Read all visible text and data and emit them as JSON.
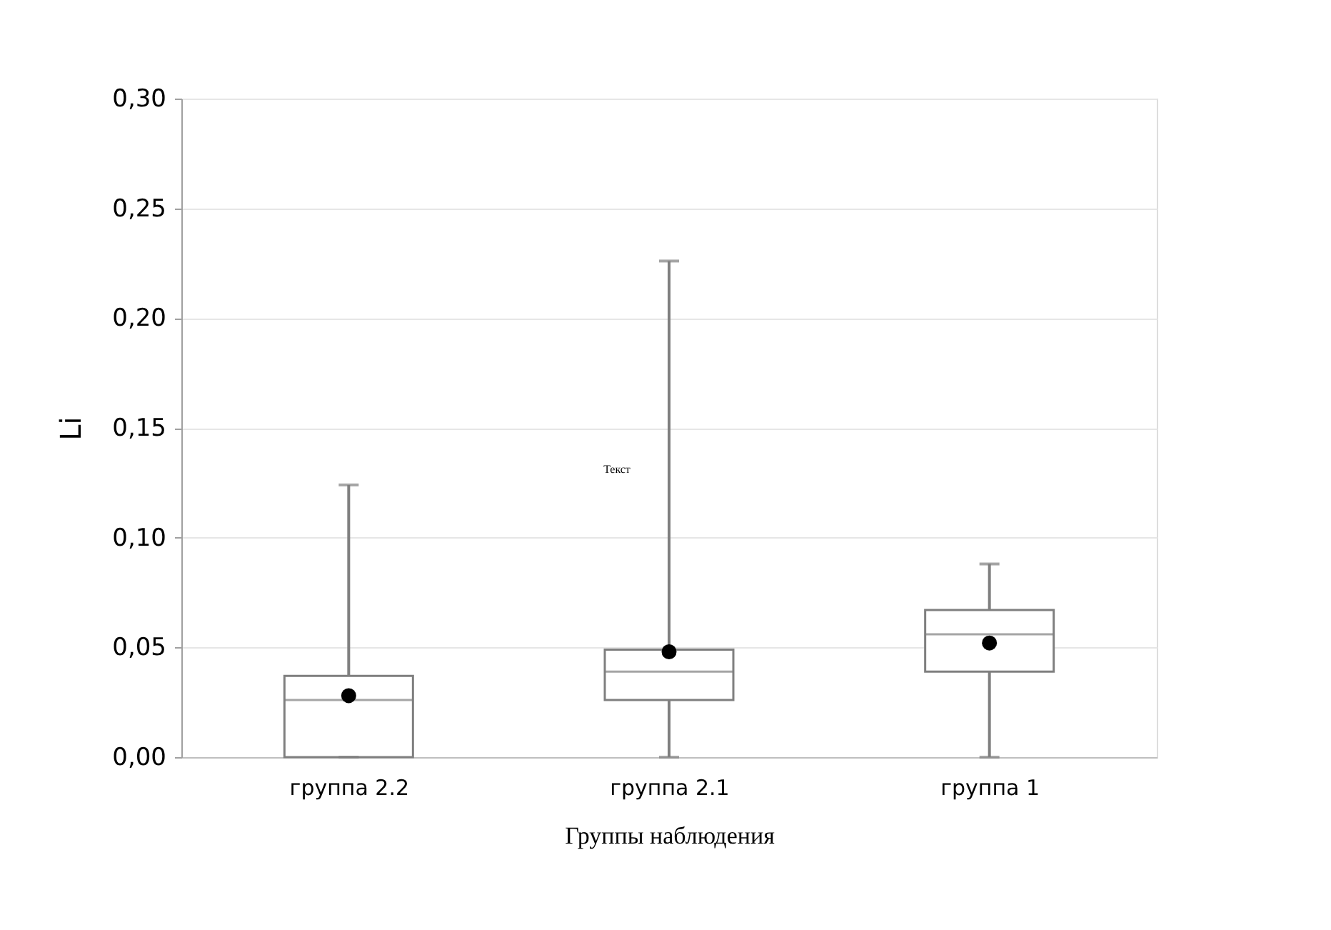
{
  "chart_data": {
    "type": "box",
    "categories": [
      "группа 2.2",
      "группа 2.1",
      "группа 1"
    ],
    "series": [
      {
        "color": "#7f7f7f",
        "boxes": [
          {
            "low": 0,
            "q1": 0,
            "median": 0.026,
            "q3": 0.037,
            "high": 0.124,
            "mean": 0.028
          },
          {
            "low": 0,
            "q1": 0.026,
            "median": 0.039,
            "q3": 0.049,
            "high": 0.226,
            "mean": 0.048
          },
          {
            "low": 0,
            "q1": 0.039,
            "median": 0.056,
            "q3": 0.067,
            "high": 0.088,
            "mean": 0.052
          }
        ]
      }
    ],
    "xlabel": "Группы наблюдения",
    "ylabel": "Li",
    "ylim": [
      0,
      0.3
    ],
    "yticks": [
      {
        "value": 0,
        "label": "0,00"
      },
      {
        "value": 0.05,
        "label": "0,05"
      },
      {
        "value": 0.1,
        "label": "0,10"
      },
      {
        "value": 0.15,
        "label": "0,15"
      },
      {
        "value": 0.2,
        "label": "0,20"
      },
      {
        "value": 0.25,
        "label": "0,25"
      },
      {
        "value": 0.3,
        "label": "0,30"
      }
    ],
    "grid": "y",
    "annotations": [
      "Текст"
    ]
  }
}
